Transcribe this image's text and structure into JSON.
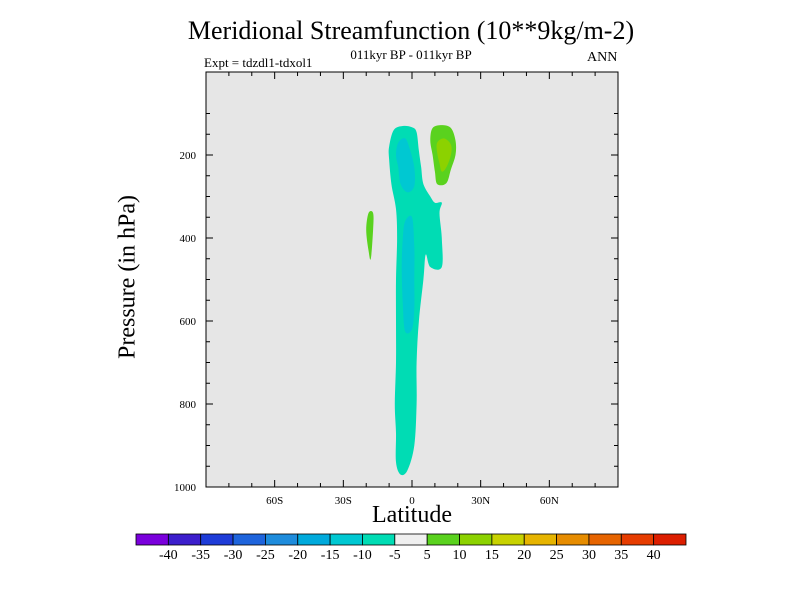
{
  "chart_data": {
    "type": "contour",
    "title": "Meridional Streamfunction (10**9kg/m-2)",
    "subtitle": "011kyr BP - 011kyr BP",
    "experiment": "Expt = tdzdl1-tdxol1",
    "season": "ANN",
    "xlabel": "Latitude",
    "ylabel": "Pressure (in hPa)",
    "xlim": [
      -90,
      90
    ],
    "ylim": [
      1000,
      0
    ],
    "x_ticks": [
      {
        "value": -60,
        "label": "60S"
      },
      {
        "value": -30,
        "label": "30S"
      },
      {
        "value": 0,
        "label": "0"
      },
      {
        "value": 30,
        "label": "30N"
      },
      {
        "value": 60,
        "label": "60N"
      }
    ],
    "y_ticks": [
      {
        "value": 200,
        "label": "200"
      },
      {
        "value": 400,
        "label": "400"
      },
      {
        "value": 600,
        "label": "600"
      },
      {
        "value": 800,
        "label": "800"
      },
      {
        "value": 1000,
        "label": "1000"
      }
    ],
    "background_color": "#e6e6e6",
    "colorbar": {
      "labels": [
        "-40",
        "-35",
        "-30",
        "-25",
        "-20",
        "-15",
        "-10",
        "-5",
        "5",
        "10",
        "15",
        "20",
        "25",
        "30",
        "35",
        "40"
      ],
      "colors": [
        "#7a00dc",
        "#3c1ecc",
        "#1e3cd8",
        "#1e64dc",
        "#1e8cdc",
        "#00aadc",
        "#00c8d2",
        "#00dcb4",
        "#f0f0f0",
        "#5ad21e",
        "#8cd200",
        "#c8d200",
        "#e6b400",
        "#e68c00",
        "#e66400",
        "#e63c00",
        "#dc1e00"
      ]
    },
    "regions": [
      {
        "name": "negative-streamfunction-cell",
        "range": "-10 to -5",
        "color": "#00dcb4",
        "outline": [
          [
            -8,
            140
          ],
          [
            -4,
            130
          ],
          [
            0,
            133
          ],
          [
            2,
            145
          ],
          [
            3,
            190
          ],
          [
            4,
            230
          ],
          [
            5,
            270
          ],
          [
            8,
            300
          ],
          [
            10,
            315
          ],
          [
            13,
            315
          ],
          [
            12,
            340
          ],
          [
            13,
            400
          ],
          [
            13,
            470
          ],
          [
            8,
            470
          ],
          [
            6,
            440
          ],
          [
            5,
            500
          ],
          [
            3,
            600
          ],
          [
            2,
            700
          ],
          [
            2,
            800
          ],
          [
            1,
            900
          ],
          [
            -2,
            960
          ],
          [
            -5,
            970
          ],
          [
            -7,
            940
          ],
          [
            -7,
            870
          ],
          [
            -7.5,
            800
          ],
          [
            -7,
            700
          ],
          [
            -7,
            600
          ],
          [
            -7,
            500
          ],
          [
            -6.5,
            400
          ],
          [
            -7,
            330
          ],
          [
            -9,
            270
          ],
          [
            -10,
            210
          ],
          [
            -10,
            180
          ]
        ]
      },
      {
        "name": "negative-streamfunction-core-upper",
        "range": "-15 to -10",
        "color": "#00c8d2",
        "outline": [
          [
            -6,
            170
          ],
          [
            -3,
            160
          ],
          [
            -1,
            185
          ],
          [
            1,
            230
          ],
          [
            1,
            275
          ],
          [
            -2,
            290
          ],
          [
            -5,
            270
          ],
          [
            -6,
            230
          ],
          [
            -7,
            200
          ]
        ]
      },
      {
        "name": "negative-streamfunction-core-lower",
        "range": "-15 to -10",
        "color": "#00c8d2",
        "outline": [
          [
            -3,
            360
          ],
          [
            0,
            350
          ],
          [
            1,
            420
          ],
          [
            1,
            500
          ],
          [
            1,
            570
          ],
          [
            0,
            620
          ],
          [
            -3,
            625
          ],
          [
            -4,
            560
          ],
          [
            -4.5,
            470
          ],
          [
            -4,
            400
          ]
        ]
      },
      {
        "name": "positive-streamfunction-cell",
        "range": "5 to 10",
        "color": "#5ad21e",
        "outline": [
          [
            9,
            135
          ],
          [
            13,
            128
          ],
          [
            17,
            135
          ],
          [
            19,
            165
          ],
          [
            19,
            200
          ],
          [
            17,
            235
          ],
          [
            15,
            268
          ],
          [
            11,
            270
          ],
          [
            10,
            240
          ],
          [
            9,
            200
          ],
          [
            8,
            165
          ]
        ]
      },
      {
        "name": "positive-streamfunction-core",
        "range": "10 to 15",
        "color": "#8cd200",
        "outline": [
          [
            11,
            170
          ],
          [
            14,
            160
          ],
          [
            17,
            175
          ],
          [
            17,
            200
          ],
          [
            15,
            230
          ],
          [
            13,
            240
          ],
          [
            12,
            220
          ],
          [
            11,
            195
          ]
        ]
      },
      {
        "name": "small-positive-cell",
        "range": "5 to 10",
        "color": "#5ad21e",
        "outline": [
          [
            -19,
            340
          ],
          [
            -17,
            340
          ],
          [
            -17,
            380
          ],
          [
            -18,
            450
          ],
          [
            -19,
            430
          ],
          [
            -20,
            380
          ]
        ]
      }
    ]
  }
}
